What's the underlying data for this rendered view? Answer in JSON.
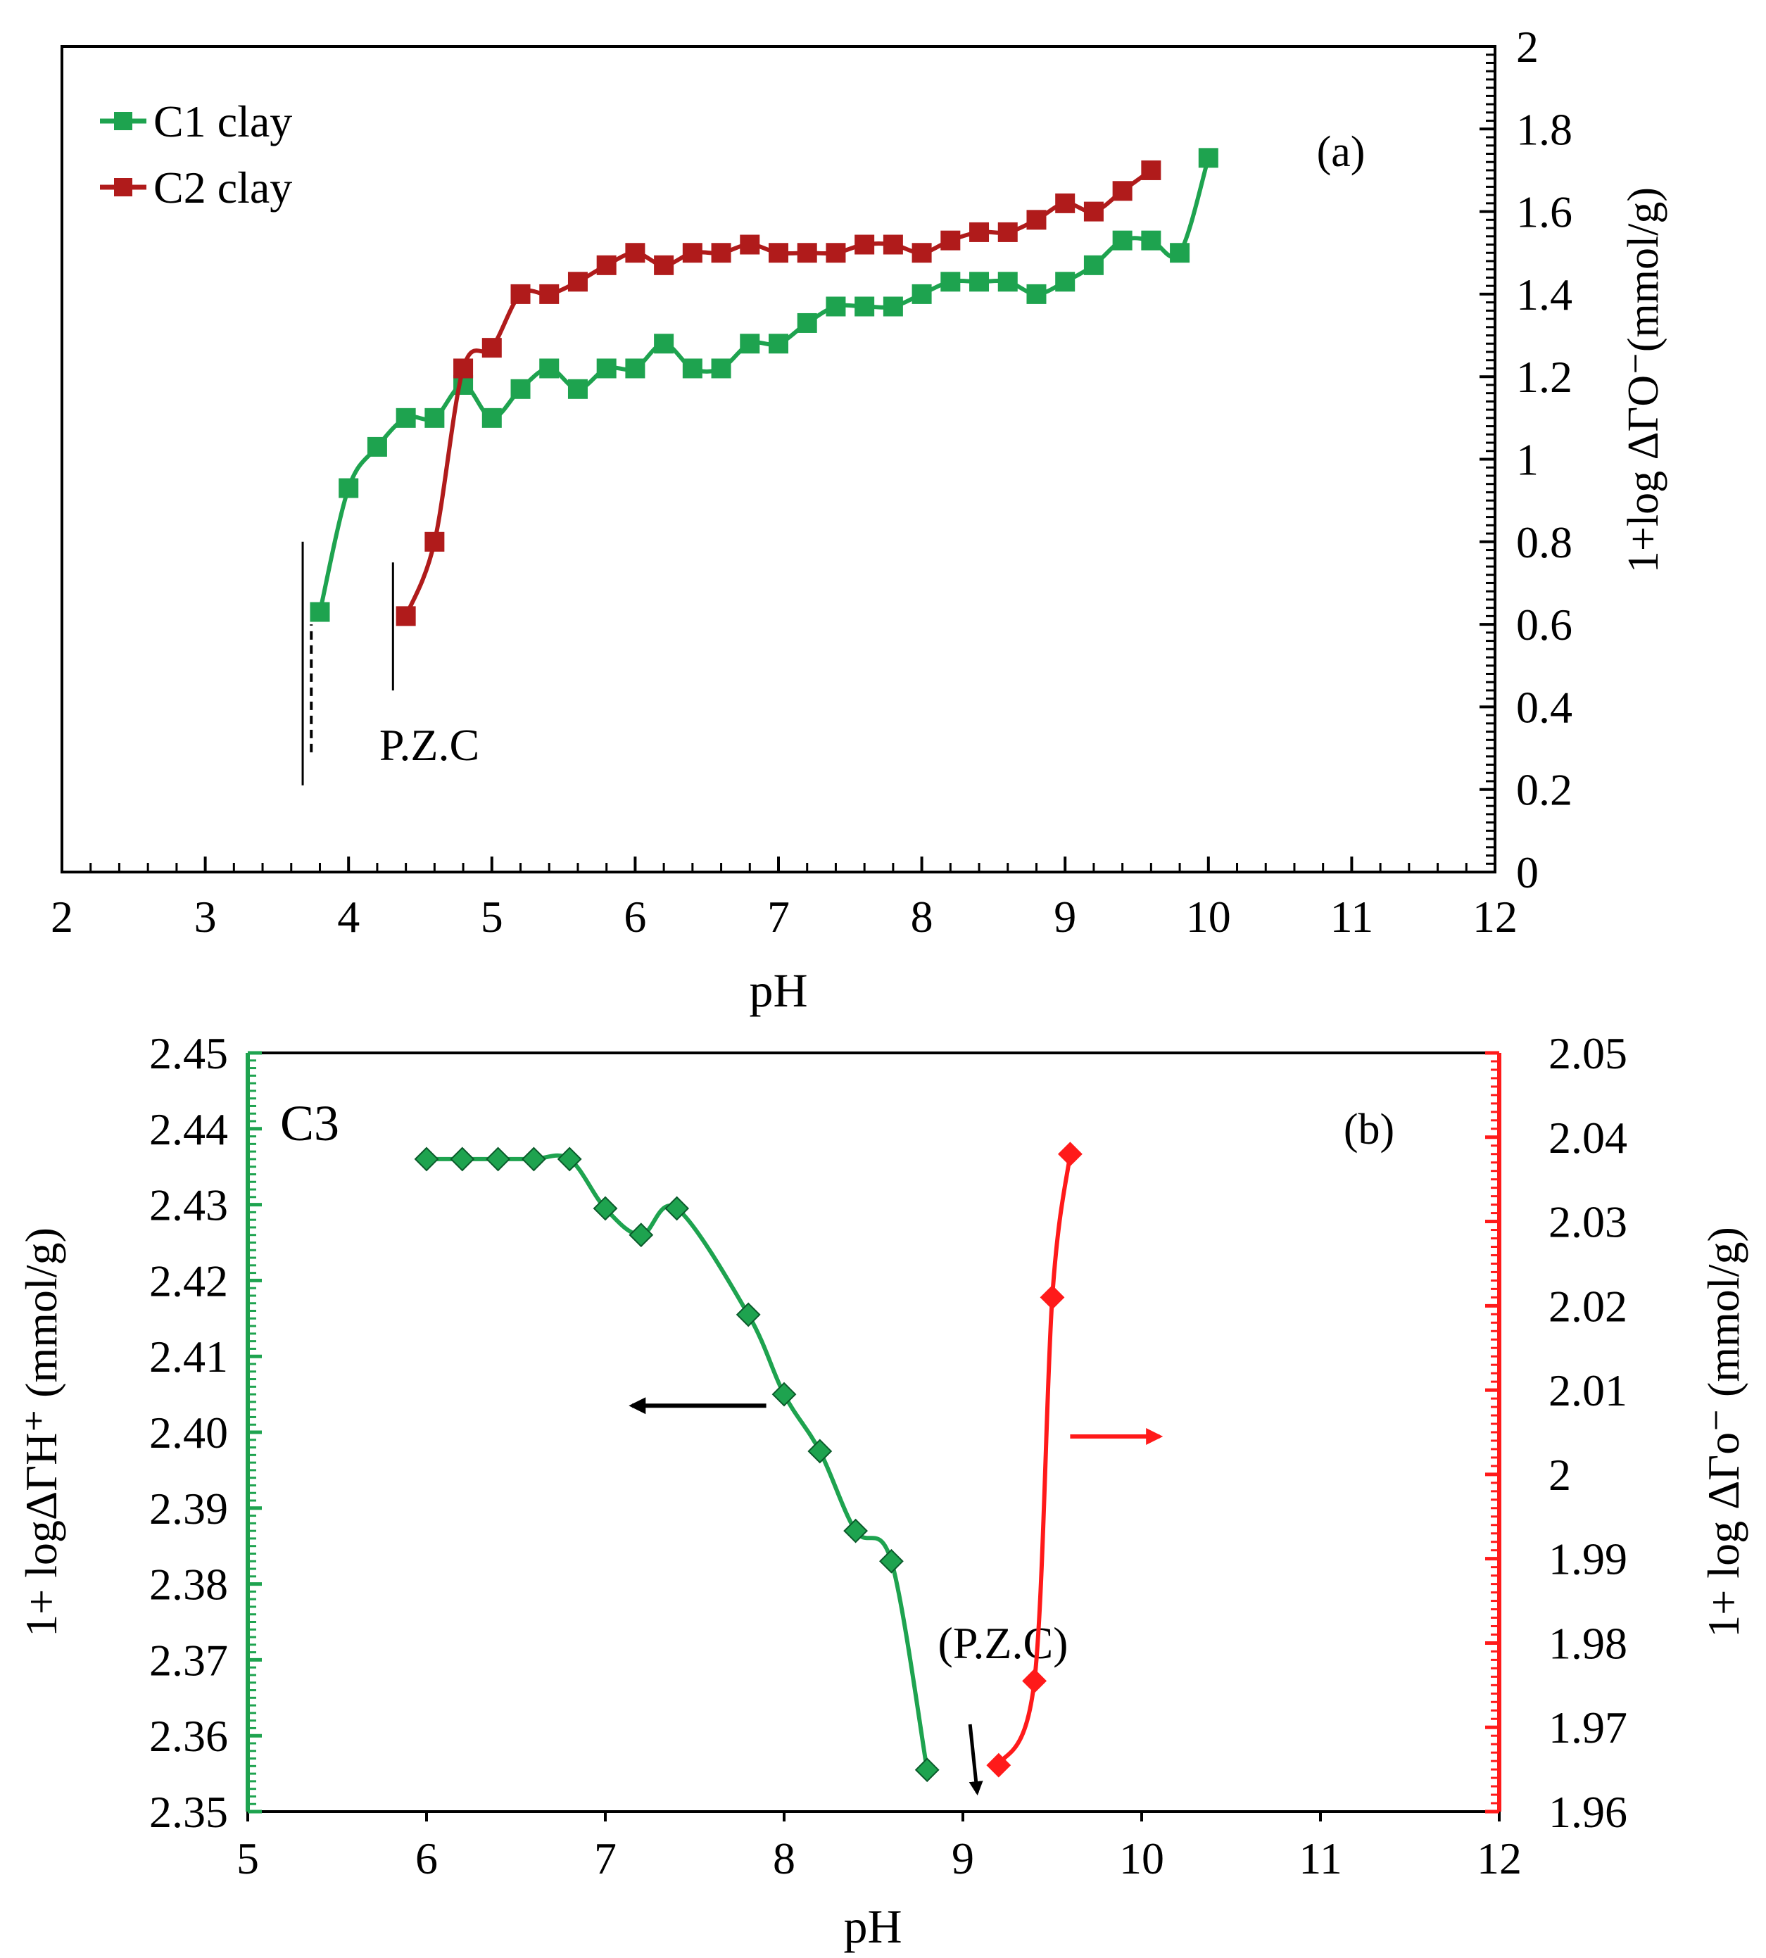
{
  "chart_data": [
    {
      "id": "a",
      "type": "line",
      "panel_label": "(a)",
      "xlabel": "pH",
      "ylabel": "1+log  ΔΓO⁻(mmol/g)",
      "xlim": [
        2,
        12
      ],
      "ylim": [
        0,
        2
      ],
      "xticks": [
        2,
        3,
        4,
        5,
        6,
        7,
        8,
        9,
        10,
        11,
        12
      ],
      "xtick_labels": [
        "2",
        "3",
        "4",
        "5",
        "6",
        "7",
        "8",
        "9",
        "10",
        "11",
        "12"
      ],
      "yticks": [
        0,
        0.2,
        0.4,
        0.6,
        0.8,
        1,
        1.2,
        1.4,
        1.6,
        1.8,
        2
      ],
      "ytick_labels": [
        "0",
        "0.2",
        "0.4",
        "0.6",
        "0.8",
        "1",
        "1.2",
        "1.4",
        "1.6",
        "1.8",
        "2"
      ],
      "y_axis_side": "right",
      "legend_position": "top-left",
      "annotation": "P.Z.C",
      "pzc_markers": [
        {
          "x": 3.68,
          "y0": 0.21,
          "y1": 0.8,
          "style": "solid"
        },
        {
          "x": 3.74,
          "y0": 0.29,
          "y1": 0.6,
          "style": "dashed"
        },
        {
          "x": 4.31,
          "y0": 0.44,
          "y1": 0.75,
          "style": "solid"
        }
      ],
      "series": [
        {
          "name": "C1 clay",
          "color": "#1ea34f",
          "marker": "square",
          "x": [
            3.8,
            4.0,
            4.2,
            4.4,
            4.6,
            4.8,
            5.0,
            5.2,
            5.4,
            5.6,
            5.8,
            6.0,
            6.2,
            6.4,
            6.6,
            6.8,
            7.0,
            7.2,
            7.4,
            7.6,
            7.8,
            8.0,
            8.2,
            8.4,
            8.6,
            8.8,
            9.0,
            9.2,
            9.4,
            9.6,
            9.8,
            10.0
          ],
          "y": [
            0.63,
            0.93,
            1.03,
            1.1,
            1.1,
            1.18,
            1.1,
            1.17,
            1.22,
            1.17,
            1.22,
            1.22,
            1.28,
            1.22,
            1.22,
            1.28,
            1.28,
            1.33,
            1.37,
            1.37,
            1.37,
            1.4,
            1.43,
            1.43,
            1.43,
            1.4,
            1.43,
            1.47,
            1.53,
            1.53,
            1.5,
            1.73
          ]
        },
        {
          "name": "C2 clay",
          "color": "#b01b1b",
          "marker": "square",
          "x": [
            4.4,
            4.6,
            4.8,
            5.0,
            5.2,
            5.4,
            5.6,
            5.8,
            6.0,
            6.2,
            6.4,
            6.6,
            6.8,
            7.0,
            7.2,
            7.4,
            7.6,
            7.8,
            8.0,
            8.2,
            8.4,
            8.6,
            8.8,
            9.0,
            9.2,
            9.4,
            9.6
          ],
          "y": [
            0.62,
            0.8,
            1.22,
            1.27,
            1.4,
            1.4,
            1.43,
            1.47,
            1.5,
            1.47,
            1.5,
            1.5,
            1.52,
            1.5,
            1.5,
            1.5,
            1.52,
            1.52,
            1.5,
            1.53,
            1.55,
            1.55,
            1.58,
            1.62,
            1.6,
            1.65,
            1.7
          ]
        }
      ]
    },
    {
      "id": "b",
      "type": "line",
      "panel_label": "(b)",
      "sample_label": "C3",
      "xlabel": "pH",
      "ylabel_left": "1+ logΔΓH⁺ (mmol/g)",
      "ylabel_right": "1+ log ΔΓo⁻ (mmol/g)",
      "xlim": [
        5,
        12
      ],
      "ylim_left": [
        2.35,
        2.45
      ],
      "ylim_right": [
        1.96,
        2.05
      ],
      "xticks": [
        5,
        6,
        7,
        8,
        9,
        10,
        11,
        12
      ],
      "xtick_labels": [
        "5",
        "6",
        "7",
        "8",
        "9",
        "10",
        "11",
        "12"
      ],
      "yticks_left": [
        2.35,
        2.36,
        2.37,
        2.38,
        2.39,
        2.4,
        2.41,
        2.42,
        2.43,
        2.44,
        2.45
      ],
      "ytick_labels_left": [
        "2.35",
        "2.36",
        "2.37",
        "2.38",
        "2.39",
        "2.40",
        "2.41",
        "2.42",
        "2.43",
        "2.44",
        "2.45"
      ],
      "yticks_right": [
        1.96,
        1.97,
        1.98,
        1.99,
        2.0,
        2.01,
        2.02,
        2.03,
        2.04,
        2.05
      ],
      "ytick_labels_right": [
        "1.96",
        "1.97",
        "1.98",
        "1.99",
        "2",
        "2.01",
        "2.02",
        "2.03",
        "2.04",
        "2.05"
      ],
      "left_axis_color": "#1ea34f",
      "right_axis_color": "#ff1a1a",
      "annotation": "(P.Z.C)",
      "pzc_arrow": {
        "x_from": 9.04,
        "x_to": 9.08,
        "y_from": 2.3615,
        "y_to": 2.3525
      },
      "direction_arrows": [
        {
          "series": "left",
          "x_from": 7.9,
          "x_to": 7.15,
          "y": 2.4035
        },
        {
          "series": "right",
          "x_from": 9.6,
          "x_to": 10.1,
          "y": 2.0045
        }
      ],
      "series": [
        {
          "name": "ΔΓH⁺",
          "axis": "left",
          "color": "#1ea34f",
          "marker": "diamond",
          "x": [
            6.0,
            6.2,
            6.4,
            6.6,
            6.8,
            7.0,
            7.2,
            7.4,
            7.8,
            8.0,
            8.2,
            8.4,
            8.6,
            8.8
          ],
          "y": [
            2.436,
            2.436,
            2.436,
            2.436,
            2.436,
            2.4295,
            2.426,
            2.4295,
            2.4155,
            2.405,
            2.3975,
            2.387,
            2.383,
            2.3555
          ]
        },
        {
          "name": "ΔΓo⁻",
          "axis": "right",
          "color": "#ff1a1a",
          "marker": "diamond",
          "x": [
            9.2,
            9.4,
            9.5,
            9.6
          ],
          "y": [
            1.9655,
            1.9755,
            2.021,
            2.038
          ]
        }
      ]
    }
  ]
}
